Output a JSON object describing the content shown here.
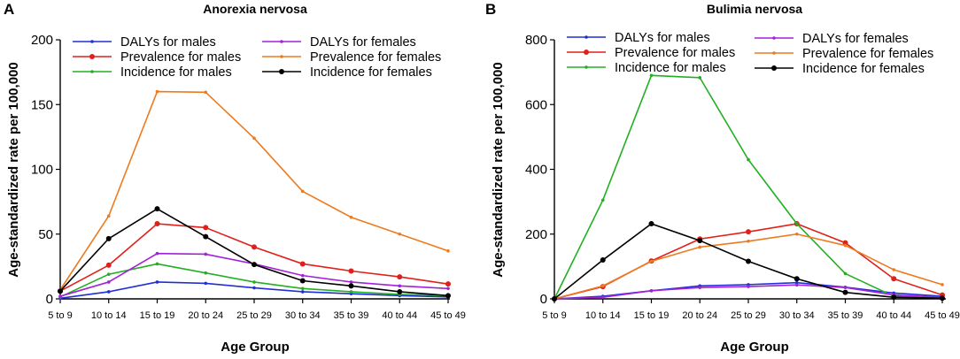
{
  "chart_data": [
    {
      "type": "line",
      "panel_letter": "A",
      "title": "Anorexia nervosa",
      "xlabel": "Age Group",
      "ylabel": "Age-standardized rate per 100,000",
      "categories": [
        "5 to 9",
        "10 to 14",
        "15 to 19",
        "20 to 24",
        "25 to 29",
        "30 to 34",
        "35 to 39",
        "40 to 44",
        "45 to 49"
      ],
      "ylim": [
        0,
        200
      ],
      "yticks": [
        0,
        50,
        100,
        150,
        200
      ],
      "legend": "top-left",
      "series": [
        {
          "name": "DALYs for males",
          "color": "#1f2fd6",
          "marker": "small",
          "values": [
            0.5,
            5.5,
            13,
            12,
            8.5,
            5.5,
            4,
            2.5,
            1.5
          ]
        },
        {
          "name": "Prevalence for males",
          "color": "#e0201a",
          "marker": "dot",
          "values": [
            6,
            26,
            58,
            55,
            40,
            27,
            21.5,
            17,
            11.5
          ]
        },
        {
          "name": "Incidence for males",
          "color": "#22b022",
          "marker": "small",
          "values": [
            1.5,
            19,
            27,
            20,
            13,
            8,
            5.5,
            3.5,
            2.5
          ]
        },
        {
          "name": "DALYs for females",
          "color": "#a222d8",
          "marker": "small",
          "values": [
            2,
            13,
            35,
            34.5,
            27,
            18,
            13,
            10,
            8
          ]
        },
        {
          "name": "Prevalence for females",
          "color": "#ee7a1e",
          "marker": "small",
          "values": [
            7,
            64,
            160,
            159.5,
            124,
            83,
            63,
            50,
            37
          ]
        },
        {
          "name": "Incidence for females",
          "color": "#000000",
          "marker": "dot",
          "values": [
            6,
            46.5,
            69.5,
            48,
            26.5,
            14,
            10,
            5.5,
            2.5
          ]
        }
      ]
    },
    {
      "type": "line",
      "panel_letter": "B",
      "title": "Bulimia nervosa",
      "xlabel": "Age Group",
      "ylabel": "Age-standardized rate per 100,000",
      "categories": [
        "5 to 9",
        "10 to 14",
        "15 to 19",
        "20 to 24",
        "25 to 29",
        "30 to 34",
        "35 to 39",
        "40 to 44",
        "45 to 49"
      ],
      "ylim": [
        0,
        800
      ],
      "yticks": [
        0,
        200,
        400,
        600,
        800
      ],
      "legend": "top",
      "series": [
        {
          "name": "DALYs for males",
          "color": "#1f2fd6",
          "marker": "small",
          "values": [
            0,
            8,
            25,
            40,
            44,
            50,
            36,
            18,
            8
          ]
        },
        {
          "name": "Prevalence for males",
          "color": "#e0201a",
          "marker": "dot",
          "values": [
            0,
            38,
            117,
            185,
            207,
            232,
            173,
            62,
            12
          ]
        },
        {
          "name": "Incidence for males",
          "color": "#22b022",
          "marker": "small",
          "values": [
            0,
            305,
            690,
            683,
            430,
            232,
            78,
            8,
            2
          ]
        },
        {
          "name": "DALYs for females",
          "color": "#a222d8",
          "marker": "small",
          "values": [
            0,
            5,
            25,
            35,
            38,
            43,
            35,
            12,
            5
          ]
        },
        {
          "name": "Prevalence for females",
          "color": "#ee7a1e",
          "marker": "small",
          "values": [
            0,
            40,
            116,
            160,
            178,
            200,
            165,
            90,
            44
          ]
        },
        {
          "name": "Incidence for females",
          "color": "#000000",
          "marker": "dot",
          "values": [
            0,
            120,
            232,
            180,
            116,
            62,
            20,
            5,
            2
          ]
        }
      ]
    }
  ]
}
